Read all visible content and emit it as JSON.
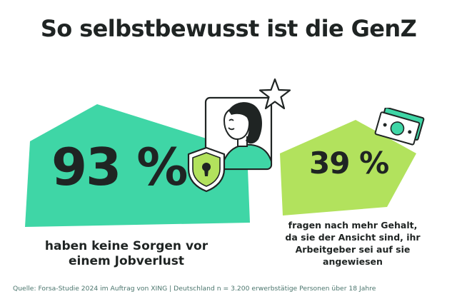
{
  "title": {
    "prefix": "So ",
    "highlight": "selbstbewusst",
    "suffix": " ist die GenZ"
  },
  "stats": [
    {
      "value": "93 %",
      "caption": "haben keine Sorgen vor\neinem Jobverlust",
      "blob_color": "#3fd6a6"
    },
    {
      "value": "39 %",
      "caption": "fragen nach mehr Gehalt,\nda sie der Ansicht sind, ihr\nArbeitgeber sei auf sie\nangewiesen",
      "blob_color": "#b2e25d"
    }
  ],
  "source": "Quelle: Forsa-Studie 2024 im Auftrag von XING | Deutschland n = 3.200 erwerbstätige Personen über 18 Jahre",
  "colors": {
    "accent_green": "#3fd6a6",
    "accent_lime": "#b2e25d",
    "text_dark": "#1f2423",
    "source_text": "#4c766e"
  },
  "icons": [
    "person-portrait-icon",
    "star-icon",
    "shield-lock-icon",
    "money-bill-icon"
  ]
}
